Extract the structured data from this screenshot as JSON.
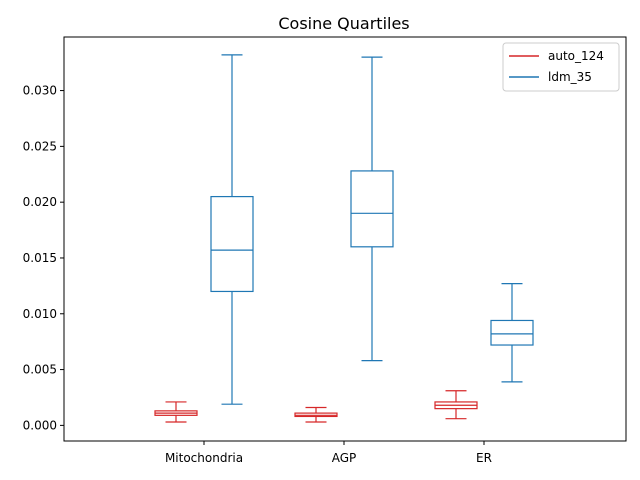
{
  "chart_data": {
    "type": "box",
    "title": "Cosine Quartiles",
    "xlabel": "",
    "ylabel": "",
    "categories": [
      "Mitochondria",
      "AGP",
      "ER"
    ],
    "ylim": [
      -0.0014,
      0.0348
    ],
    "yticks": [
      0.0,
      0.005,
      0.01,
      0.015,
      0.02,
      0.025,
      0.03
    ],
    "ytick_labels": [
      "0.000",
      "0.005",
      "0.010",
      "0.015",
      "0.020",
      "0.025",
      "0.030"
    ],
    "grid": false,
    "legend_position": "top-right",
    "series": [
      {
        "name": "auto_124",
        "color": "#d62728",
        "boxes": [
          {
            "whislo": 0.0003,
            "q1": 0.0009,
            "med": 0.0011,
            "q3": 0.0013,
            "whishi": 0.0021
          },
          {
            "whislo": 0.0003,
            "q1": 0.0008,
            "med": 0.0009,
            "q3": 0.0011,
            "whishi": 0.0016
          },
          {
            "whislo": 0.0006,
            "q1": 0.0015,
            "med": 0.0018,
            "q3": 0.0021,
            "whishi": 0.0031
          }
        ]
      },
      {
        "name": "ldm_35",
        "color": "#1f77b4",
        "boxes": [
          {
            "whislo": 0.0019,
            "q1": 0.012,
            "med": 0.0157,
            "q3": 0.0205,
            "whishi": 0.0332
          },
          {
            "whislo": 0.0058,
            "q1": 0.016,
            "med": 0.019,
            "q3": 0.0228,
            "whishi": 0.033
          },
          {
            "whislo": 0.0039,
            "q1": 0.0072,
            "med": 0.0082,
            "q3": 0.0094,
            "whishi": 0.0127
          }
        ]
      }
    ]
  }
}
